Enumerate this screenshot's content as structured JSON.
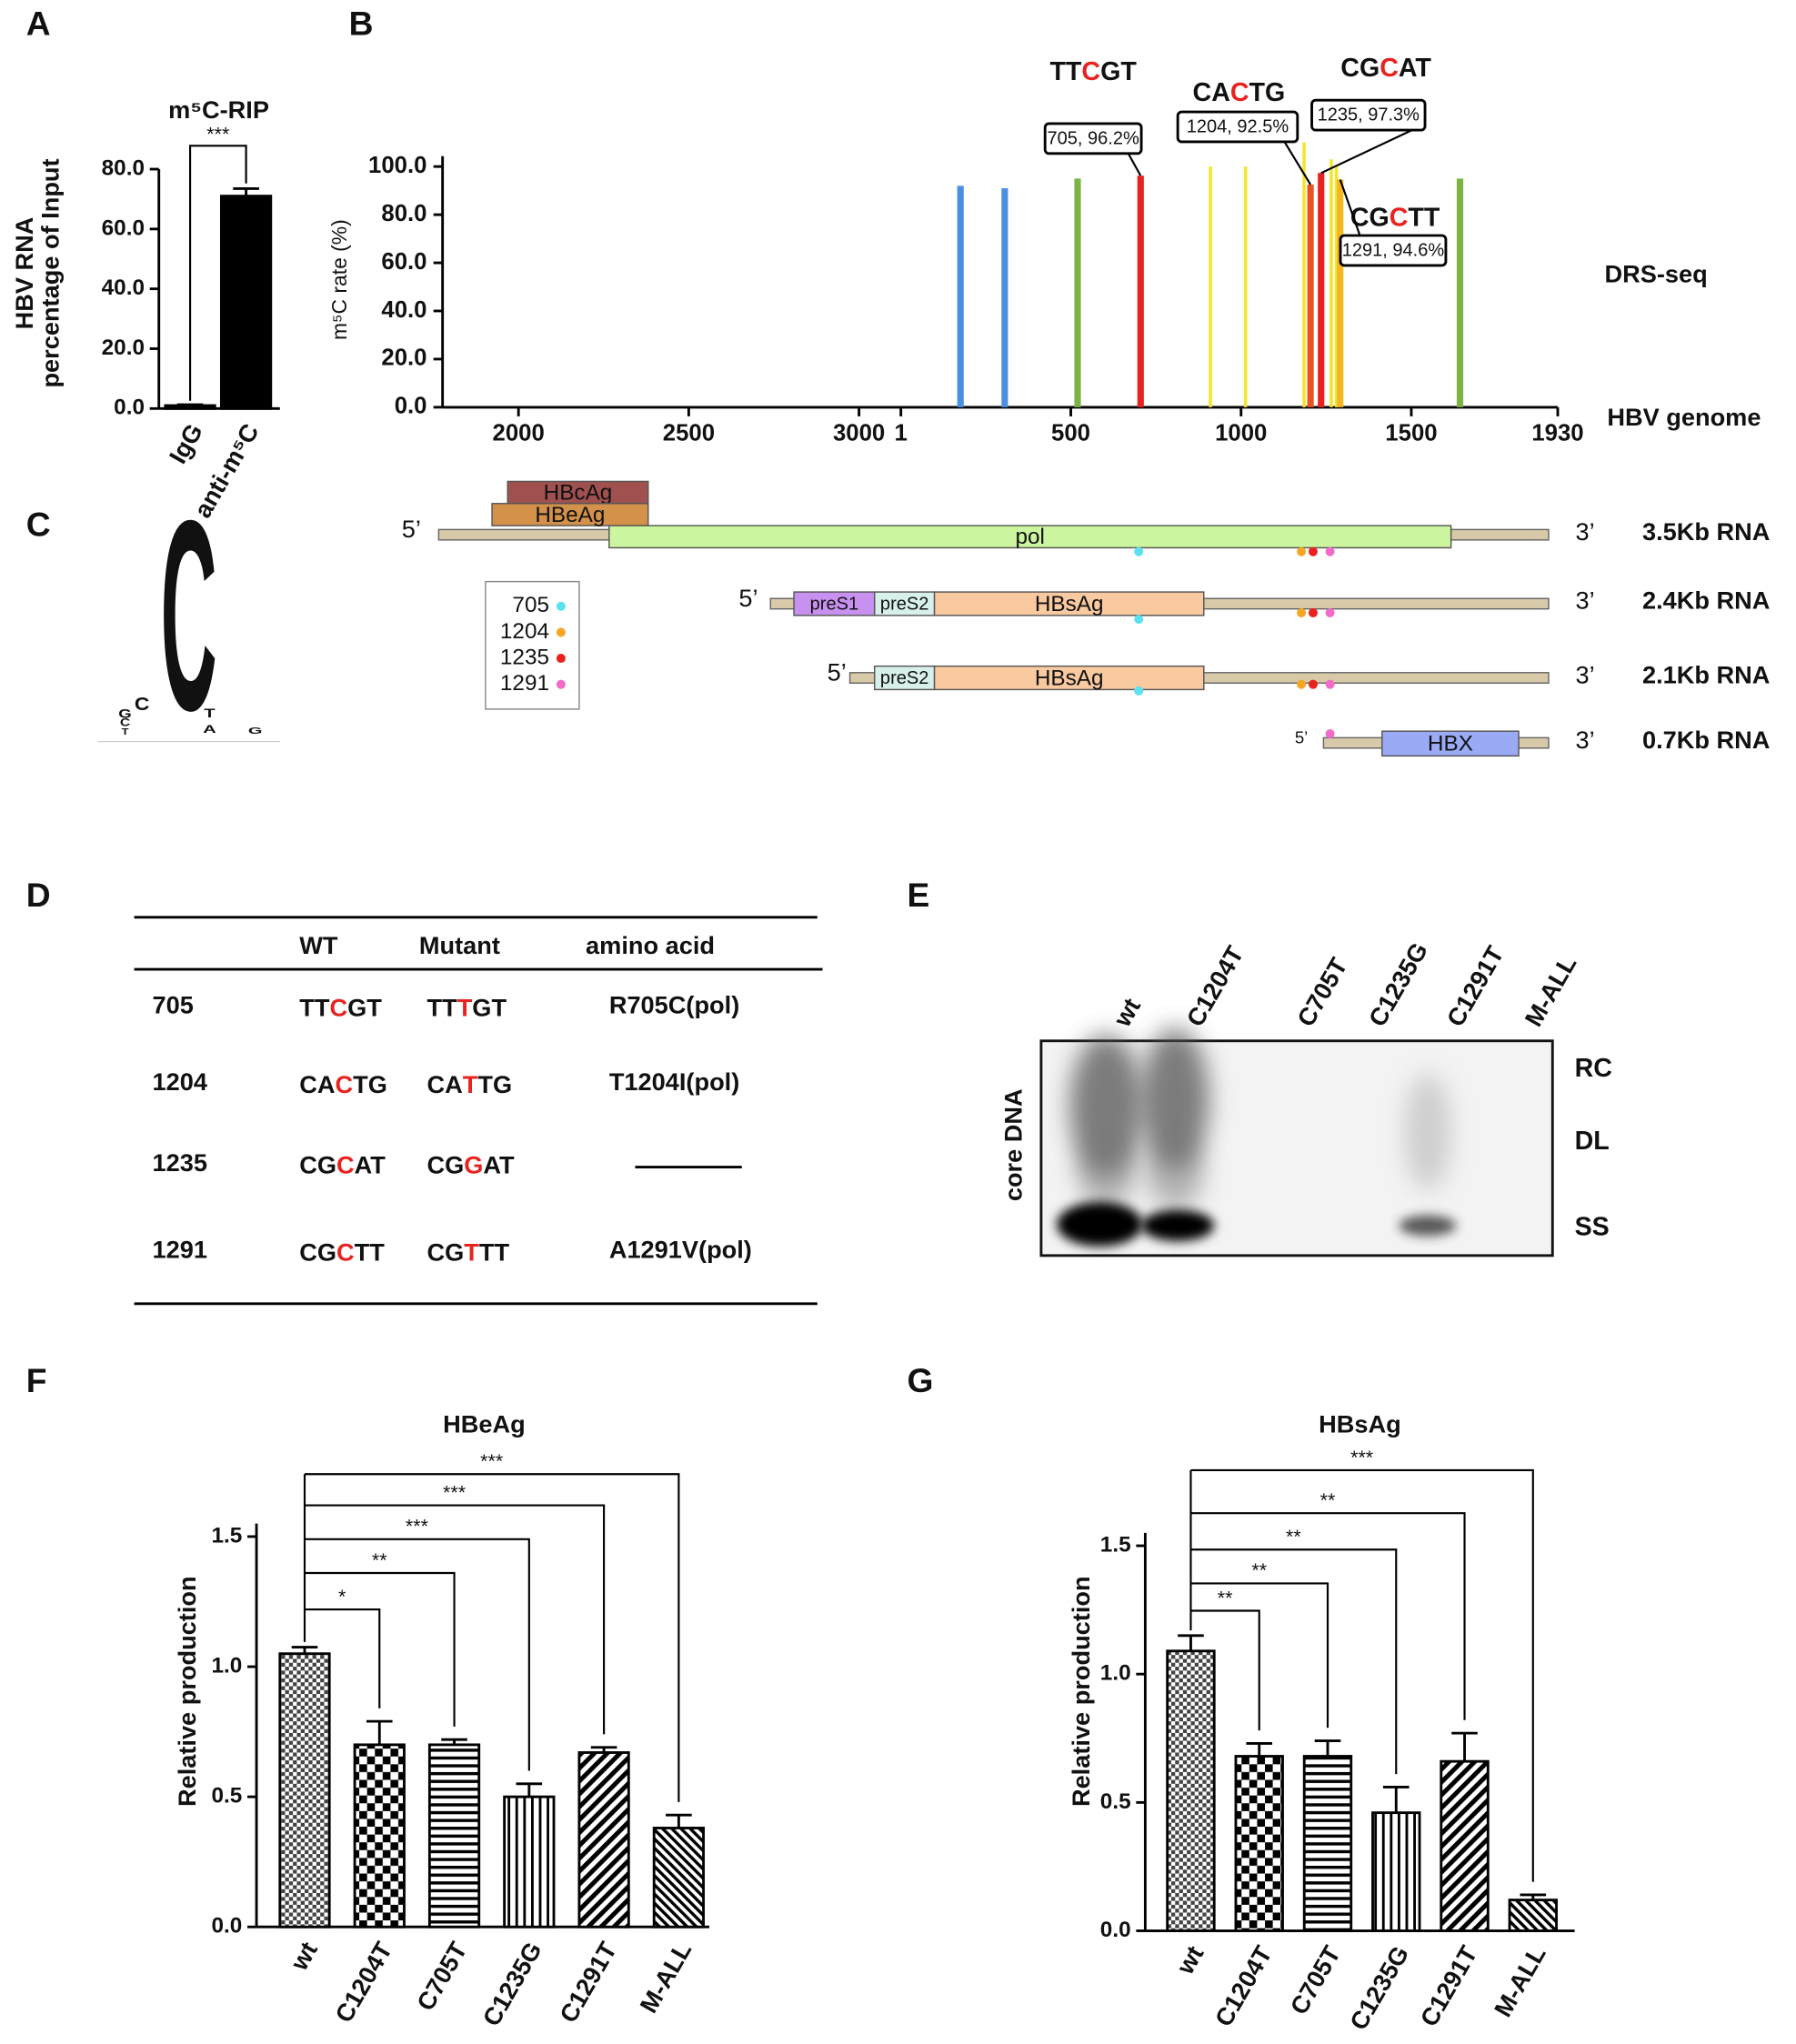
{
  "panel_labels": [
    "A",
    "B",
    "C",
    "D",
    "E",
    "F",
    "G"
  ],
  "chart_data": [
    {
      "type": "bar",
      "title": "m⁵C-RIP",
      "y_label": [
        "HBV RNA",
        "percentage of Input"
      ],
      "categories": [
        "IgG",
        "anti-m⁵C"
      ],
      "values": [
        1,
        71
      ],
      "errors": [
        0.3,
        2.5
      ],
      "color": "#000000",
      "ylim": [
        0,
        80
      ],
      "yticks": [
        {
          "value": 0,
          "label": "0.0"
        },
        {
          "value": 20,
          "label": "20.0"
        },
        {
          "value": 40,
          "label": "40.0"
        },
        {
          "value": 60,
          "label": "60.0"
        },
        {
          "value": 80,
          "label": "80.0"
        }
      ],
      "significance": "***"
    },
    {
      "type": "spike",
      "y_label": "m⁵C rate (%)",
      "track_labels": [
        "DRS-seq",
        "HBV genome"
      ],
      "x_segments": [
        [
          1777,
          3123
        ],
        [
          1,
          1930
        ]
      ],
      "xticks": [
        [
          2000,
          2500,
          3000
        ],
        [
          1,
          500,
          1000,
          1500,
          1930
        ]
      ],
      "ylim": [
        0,
        100
      ],
      "yticks": [
        {
          "value": 0,
          "label": "0.0"
        },
        {
          "value": 20,
          "label": "20.0"
        },
        {
          "value": 40,
          "label": "40.0"
        },
        {
          "value": 60,
          "label": "60.0"
        },
        {
          "value": 80,
          "label": "80.0"
        },
        {
          "value": 100,
          "label": "100.0"
        }
      ],
      "x": [
        176,
        306,
        520,
        705,
        910,
        1013,
        1185,
        1204,
        1235,
        1265,
        1280,
        1291,
        1643
      ],
      "values": [
        92,
        91,
        95,
        96.2,
        100,
        100,
        110,
        92.5,
        97.3,
        103,
        100,
        94.6,
        95
      ],
      "colors": [
        "#4a90e2",
        "#4a90e2",
        "#7cb342",
        "#e8231f",
        "#f5e52c",
        "#f5e52c",
        "#f5e52c",
        "#e8541f",
        "#e8231f",
        "#f5e52c",
        "#f5e52c",
        "#f5b623",
        "#7cb342"
      ],
      "annotations": [
        {
          "motif": "TTCGT",
          "label": "705, 96.2%"
        },
        {
          "motif": "CACTG",
          "label": "1204, 92.5%"
        },
        {
          "motif": "CGCAT",
          "label": "1235, 97.3%"
        },
        {
          "motif": "CGCTT",
          "label": "1291, 94.6%"
        }
      ]
    },
    {
      "type": "bar",
      "title": "HBeAg",
      "y_label": [
        "Relative production"
      ],
      "categories": [
        "wt",
        "C1204T",
        "C705T",
        "C1235G",
        "C1291T",
        "M-ALL"
      ],
      "values": [
        1.05,
        0.7,
        0.7,
        0.5,
        0.67,
        0.38
      ],
      "errors": [
        0.025,
        0.09,
        0.02,
        0.05,
        0.02,
        0.05
      ],
      "patterns": [
        "checker",
        "checkerboard",
        "horizontal",
        "vertical",
        "diagonal",
        "diagonal-dense"
      ],
      "ylim": [
        0,
        1.55
      ],
      "yticks": [
        {
          "value": 0,
          "label": "0.0"
        },
        {
          "value": 0.5,
          "label": "0.5"
        },
        {
          "value": 1,
          "label": "1.0"
        },
        {
          "value": 1.5,
          "label": "1.5"
        }
      ],
      "significance": [
        null,
        "*",
        "**",
        "***",
        "***",
        "***"
      ]
    },
    {
      "type": "bar",
      "title": "HBsAg",
      "y_label": [
        "Relative production"
      ],
      "categories": [
        "wt",
        "C1204T",
        "C705T",
        "C1235G",
        "C1291T",
        "M-ALL"
      ],
      "values": [
        1.09,
        0.68,
        0.68,
        0.46,
        0.66,
        0.12
      ],
      "errors": [
        0.06,
        0.05,
        0.06,
        0.1,
        0.11,
        0.02
      ],
      "patterns": [
        "checker",
        "checkerboard",
        "horizontal",
        "vertical",
        "diagonal",
        "diagonal-dense"
      ],
      "ylim": [
        0,
        1.55
      ],
      "yticks": [
        {
          "value": 0,
          "label": "0.0"
        },
        {
          "value": 0.5,
          "label": "0.5"
        },
        {
          "value": 1,
          "label": "1.0"
        },
        {
          "value": 1.5,
          "label": "1.5"
        }
      ],
      "significance": [
        null,
        "**",
        "**",
        "**",
        "**",
        "***"
      ]
    }
  ],
  "transcript_map": {
    "transcripts": [
      {
        "five": "5’",
        "three": "3’",
        "label": "3.5Kb RNA",
        "genes": [
          "HBcAg",
          "HBeAg",
          "pol"
        ]
      },
      {
        "five": "5’",
        "three": "3’",
        "label": "2.4Kb RNA",
        "genes": [
          "preS1",
          "preS2",
          "HBsAg"
        ]
      },
      {
        "five": "5’",
        "three": "3’",
        "label": "2.1Kb RNA",
        "genes": [
          "preS2",
          "HBsAg"
        ]
      },
      {
        "five": "5’",
        "three": "3’",
        "label": "0.7Kb RNA",
        "genes": [
          "HBX"
        ]
      }
    ],
    "sites_legend": [
      {
        "label": "705",
        "color": "#5ce1f0"
      },
      {
        "label": "1204",
        "color": "#f5a623"
      },
      {
        "label": "1235",
        "color": "#e8231f"
      },
      {
        "label": "1291",
        "color": "#f06cc8"
      }
    ]
  },
  "logo": {
    "letters": [
      "T",
      "C",
      "G",
      "C",
      "C",
      "T",
      "A",
      "G"
    ],
    "letter_colors": {
      "A": "#3a9a3a",
      "C": "#2b5fa0",
      "G": "#f5a623",
      "T": "#e8231f"
    }
  },
  "table": {
    "header": [
      "WT",
      "Mutant",
      "amino acid"
    ],
    "rows": [
      {
        "site": "705",
        "wt": "TTCGT",
        "mutant": "TTTGT",
        "amino_acid": "R705C(pol)"
      },
      {
        "site": "1204",
        "wt": "CACTG",
        "mutant": "CATTG",
        "amino_acid": "T1204I(pol)"
      },
      {
        "site": "1235",
        "wt": "CGCAT",
        "mutant": "CGGAT",
        "amino_acid": null
      },
      {
        "site": "1291",
        "wt": "CGCTT",
        "mutant": "CGTTT",
        "amino_acid": "A1291V(pol)"
      }
    ]
  },
  "blot": {
    "lanes": [
      "wt",
      "C1204T",
      "C705T",
      "C1235G",
      "C1291T",
      "M-ALL"
    ],
    "side_label": "core DNA",
    "bands": [
      "RC",
      "DL",
      "SS"
    ]
  }
}
